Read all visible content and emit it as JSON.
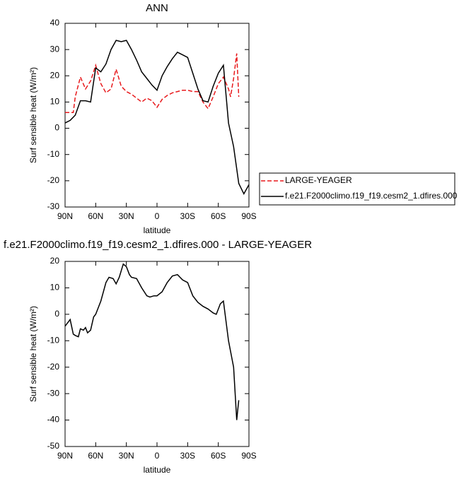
{
  "chart_data": [
    {
      "type": "line",
      "title": "ANN",
      "xlabel": "latitude",
      "ylabel": "Surf sensible heat (W/m²)",
      "xlim": [
        90,
        -90
      ],
      "xticks": [
        {
          "value": 90,
          "label": "90N"
        },
        {
          "value": 60,
          "label": "60N"
        },
        {
          "value": 30,
          "label": "30N"
        },
        0,
        {
          "value": -30,
          "label": "30S"
        },
        {
          "value": -60,
          "label": "60S"
        },
        {
          "value": -90,
          "label": "90S"
        }
      ],
      "ylim": [
        -30,
        40
      ],
      "yticks": [
        -30,
        -20,
        -10,
        0,
        10,
        20,
        30,
        40
      ],
      "legend": "outside-right",
      "series": [
        {
          "name": "LARGE-YEAGER",
          "color": "#e8191c",
          "dash": true,
          "x": [
            90,
            85,
            82,
            80,
            75,
            70,
            65,
            60,
            55,
            50,
            45,
            40,
            35,
            30,
            25,
            20,
            15,
            10,
            5,
            0,
            -5,
            -10,
            -15,
            -20,
            -25,
            -30,
            -35,
            -40,
            -45,
            -50,
            -55,
            -60,
            -65,
            -70,
            -72,
            -75,
            -78,
            -80
          ],
          "values": [
            6,
            6,
            6,
            12,
            19.5,
            15,
            18,
            24,
            17,
            13.5,
            15,
            22.5,
            16,
            14,
            13,
            11.5,
            10,
            11.5,
            10.5,
            8,
            11,
            12.5,
            13.5,
            14,
            14.5,
            14.5,
            14,
            14,
            10,
            7.5,
            12,
            17,
            19.5,
            15,
            12,
            19,
            28.5,
            12
          ]
        },
        {
          "name": "f.e21.F2000climo.f19_f19.cesm2_1.dfires.000",
          "color": "#000000",
          "dash": false,
          "x": [
            90,
            85,
            80,
            75,
            70,
            65,
            60,
            55,
            50,
            45,
            40,
            35,
            30,
            25,
            20,
            15,
            10,
            5,
            0,
            -5,
            -10,
            -15,
            -20,
            -25,
            -30,
            -35,
            -40,
            -45,
            -50,
            -55,
            -60,
            -65,
            -70,
            -75,
            -80,
            -85,
            -90
          ],
          "values": [
            2,
            3,
            5,
            10.5,
            10.5,
            10,
            23,
            21.5,
            24.5,
            30,
            33.5,
            33,
            33.5,
            30,
            26,
            21.5,
            19,
            16.5,
            14.5,
            20,
            23.5,
            26.5,
            29,
            28,
            27,
            21,
            15,
            10.5,
            10,
            16,
            21,
            24,
            2,
            -7,
            -21,
            -25,
            -21.5
          ]
        }
      ]
    },
    {
      "type": "line",
      "title": "f.e21.F2000climo.f19_f19.cesm2_1.dfires.000 - LARGE-YEAGER",
      "xlabel": "latitude",
      "ylabel": "Surf sensible heat (W/m²)",
      "xlim": [
        90,
        -90
      ],
      "xticks": [
        {
          "value": 90,
          "label": "90N"
        },
        {
          "value": 60,
          "label": "60N"
        },
        {
          "value": 30,
          "label": "30N"
        },
        0,
        {
          "value": -30,
          "label": "30S"
        },
        {
          "value": -60,
          "label": "60S"
        },
        {
          "value": -90,
          "label": "90S"
        }
      ],
      "ylim": [
        -50,
        20
      ],
      "yticks": [
        -50,
        -40,
        -30,
        -20,
        -10,
        0,
        10,
        20
      ],
      "series": [
        {
          "color": "#000000",
          "dash": false,
          "x": [
            90,
            85,
            82,
            80,
            77,
            75,
            72,
            70,
            68,
            65,
            62,
            60,
            55,
            50,
            47,
            43,
            40,
            37,
            33,
            30,
            27,
            25,
            20,
            15,
            10,
            7,
            3,
            0,
            -5,
            -10,
            -15,
            -20,
            -25,
            -30,
            -35,
            -40,
            -45,
            -50,
            -55,
            -58,
            -62,
            -65,
            -70,
            -75,
            -78,
            -80
          ],
          "values": [
            -4.5,
            -2,
            -7.5,
            -8,
            -8.5,
            -5.5,
            -6,
            -5,
            -7,
            -6,
            -1,
            0,
            5,
            12,
            14,
            13.5,
            11.5,
            14,
            19,
            18,
            15,
            14,
            13.5,
            10,
            7,
            6.5,
            7,
            7,
            8.5,
            12,
            14.5,
            15,
            13,
            12,
            7,
            4.5,
            3,
            2,
            0.5,
            0,
            4,
            5,
            -10,
            -20,
            -40,
            -32.5
          ]
        }
      ]
    }
  ]
}
